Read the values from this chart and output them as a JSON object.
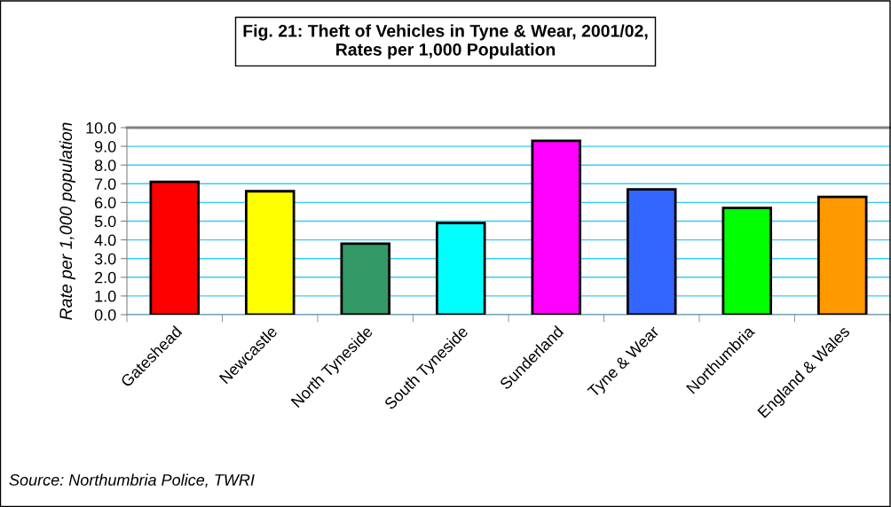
{
  "chart_data": {
    "type": "bar",
    "title": "Fig. 21: Theft of Vehicles in Tyne & Wear, 2001/02,\nRates per 1,000 Population",
    "ylabel": "Rate per 1,000 population",
    "categories": [
      "Gateshead",
      "Newcastle",
      "North Tyneside",
      "South Tyneside",
      "Sunderland",
      "Tyne & Wear",
      "Northumbria",
      "England & Wales"
    ],
    "values": [
      7.1,
      6.6,
      3.8,
      4.9,
      9.3,
      6.7,
      5.7,
      6.3
    ],
    "colors": [
      "#ff0000",
      "#ffff00",
      "#339966",
      "#00ffff",
      "#ff00ff",
      "#3366ff",
      "#00ff00",
      "#ff9900"
    ],
    "ylim": [
      0,
      10
    ],
    "yticks": [
      {
        "value": 0,
        "label": "0.0"
      },
      {
        "value": 1,
        "label": "1.0"
      },
      {
        "value": 2,
        "label": "2.0"
      },
      {
        "value": 3,
        "label": "3.0"
      },
      {
        "value": 4,
        "label": "4.0"
      },
      {
        "value": 5,
        "label": "5.0"
      },
      {
        "value": 6,
        "label": "6.0"
      },
      {
        "value": 7,
        "label": "7.0"
      },
      {
        "value": 8,
        "label": "8.0"
      },
      {
        "value": 9,
        "label": "9.0"
      },
      {
        "value": 10,
        "label": "10.0"
      }
    ],
    "grid": "y",
    "legend": false,
    "annotations": [
      "Source: Northumbria Police, TWRI"
    ]
  }
}
